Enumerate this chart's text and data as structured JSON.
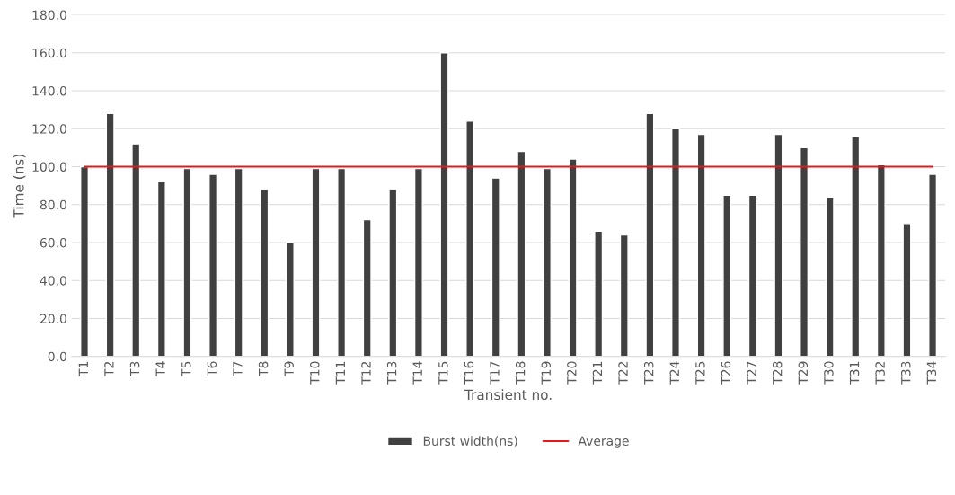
{
  "chart_data": {
    "type": "bar",
    "xlabel": "Transient no.",
    "ylabel": "Time (ns)",
    "categories": [
      "T1",
      "T2",
      "T3",
      "T4",
      "T5",
      "T6",
      "T7",
      "T8",
      "T9",
      "T10",
      "T11",
      "T12",
      "T13",
      "T14",
      "T15",
      "T16",
      "T17",
      "T18",
      "T19",
      "T20",
      "T21",
      "T22",
      "T23",
      "T24",
      "T25",
      "T26",
      "T27",
      "T28",
      "T29",
      "T30",
      "T31",
      "T32",
      "T33",
      "T34"
    ],
    "series": [
      {
        "name": "Burst width(ns)",
        "type": "bar",
        "color": "#404040",
        "values": [
          100,
          128,
          112,
          92,
          99,
          96,
          99,
          88,
          60,
          99,
          99,
          72,
          88,
          99,
          160,
          124,
          94,
          108,
          99,
          104,
          66,
          64,
          128,
          120,
          117,
          85,
          85,
          117,
          110,
          84,
          116,
          101,
          70,
          96
        ]
      },
      {
        "name": "Average",
        "type": "line",
        "color": "#e31a1c",
        "values": [
          100,
          100,
          100,
          100,
          100,
          100,
          100,
          100,
          100,
          100,
          100,
          100,
          100,
          100,
          100,
          100,
          100,
          100,
          100,
          100,
          100,
          100,
          100,
          100,
          100,
          100,
          100,
          100,
          100,
          100,
          100,
          100,
          100,
          100
        ]
      }
    ],
    "ylim": [
      0,
      180
    ],
    "yticks": [
      {
        "value": 0,
        "label": "0.0"
      },
      {
        "value": 20,
        "label": "20.0"
      },
      {
        "value": 40,
        "label": "40.0"
      },
      {
        "value": 60,
        "label": "60.0"
      },
      {
        "value": 80,
        "label": "80.0"
      },
      {
        "value": 100,
        "label": "100.0"
      },
      {
        "value": 120,
        "label": "120.0"
      },
      {
        "value": 140,
        "label": "140.0"
      },
      {
        "value": 160,
        "label": "160.0"
      },
      {
        "value": 180,
        "label": "180.0"
      }
    ],
    "grid": "y",
    "legend": "bottom"
  }
}
